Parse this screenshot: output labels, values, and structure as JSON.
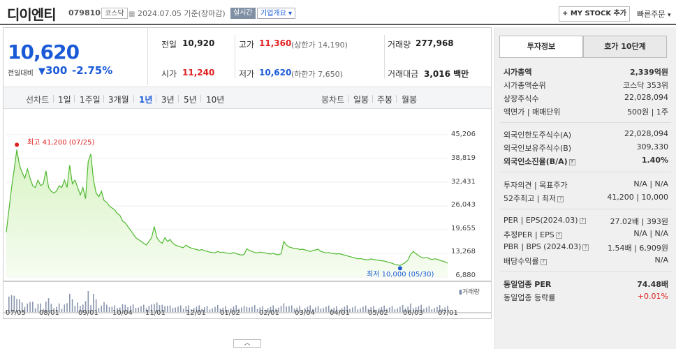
{
  "header": {
    "company": "디이엔티",
    "code": "079810",
    "market": "코스닥",
    "date": "2024.07.05 기준(장마감)",
    "live": "실시간",
    "company_info": "기업개요",
    "my_stock": "+ MY STOCK 추가",
    "fast_order": "빠른주문"
  },
  "price": {
    "current": "10,620",
    "change_label": "전일대비",
    "change": "300",
    "change_pct": "-2.75%"
  },
  "stats": {
    "prev_label": "전일",
    "prev": "10,920",
    "high_label": "고가",
    "high": "11,360",
    "upper_limit": "(상한가 14,190)",
    "vol_label": "거래량",
    "volume": "277,968",
    "open_label": "시가",
    "open": "11,240",
    "low_label": "저가",
    "low": "10,620",
    "lower_limit": "(하한가 7,650)",
    "amount_label": "거래대금",
    "amount": "3,016 백만"
  },
  "periods": {
    "line_label": "선차트",
    "items": [
      "1일",
      "1주일",
      "3개월",
      "1년",
      "3년",
      "5년",
      "10년"
    ],
    "active": "1년",
    "candle_label": "봉차트",
    "candle_items": [
      "일봉",
      "주봉",
      "월봉"
    ]
  },
  "chart_data": {
    "type": "area",
    "y_ticks": [
      "45,206",
      "38,819",
      "32,431",
      "26,043",
      "19,655",
      "13,268",
      "6,880"
    ],
    "ylim": [
      6880,
      45206
    ],
    "x_ticks": [
      "07/05",
      "08/01",
      "09/01",
      "10/04",
      "11/01",
      "12/01",
      "01/02",
      "02/01",
      "03/04",
      "04/01",
      "05/02",
      "06/03",
      "07/01"
    ],
    "high_annotation": "최고 41,200 (07/25)",
    "low_annotation": "최저 10,000 (05/30)",
    "volume_label": "거래량",
    "series": [
      {
        "values": [
          19000,
          25000,
          31000,
          36000,
          41200,
          37000,
          35000,
          33500,
          36000,
          33500,
          31500,
          31000,
          33000,
          31500,
          32000,
          35500,
          31000,
          30000,
          29500,
          30000,
          31500,
          31000,
          33000,
          31000,
          37000,
          32000,
          33000,
          31000,
          29000,
          31000,
          28000,
          38000,
          40000,
          33000,
          29500,
          28500,
          30000,
          27500,
          27000,
          26000,
          25500,
          25000,
          24000,
          23500,
          22000,
          21500,
          20500,
          19500,
          18500,
          17500,
          17000,
          16500,
          16000,
          15500,
          16500,
          17500,
          20500,
          17500,
          16500,
          16000,
          17500,
          16500,
          17000,
          16000,
          15500,
          15200,
          15000,
          14800,
          15500,
          15000,
          14700,
          14500,
          14300,
          14100,
          14300,
          14000,
          13800,
          13600,
          13500,
          13400,
          13800,
          13500,
          13600,
          13400,
          13300,
          13200,
          13500,
          13200,
          13000,
          12800,
          13000,
          14500,
          14000,
          13800,
          13500,
          13400,
          13600,
          13500,
          13400,
          13200,
          13100,
          13300,
          13000,
          12900,
          13200,
          16500,
          15500,
          15000,
          14800,
          14500,
          14600,
          14300,
          14400,
          14200,
          14000,
          13800,
          14000,
          14200,
          14400,
          13800,
          13600,
          13400,
          13500,
          13300,
          13200,
          13100,
          13200,
          13000,
          12800,
          12600,
          12400,
          12200,
          12000,
          11800,
          11900,
          11700,
          11600,
          11500,
          11800,
          11600,
          11500,
          11400,
          11300,
          11200,
          11000,
          10800,
          10600,
          10300,
          10200,
          10000,
          10400,
          10800,
          11500,
          13000,
          13800,
          13200,
          12700,
          12200,
          12000,
          12200,
          11900,
          11600,
          11800,
          11700,
          11400,
          11200,
          11000,
          10620
        ]
      }
    ]
  },
  "side": {
    "tab_active": "투자정보",
    "tab_inactive": "호가 10단계",
    "rows1": [
      {
        "l": "시가총액",
        "r": "2,339억원",
        "bold": true
      },
      {
        "l": "시가총액순위",
        "r": "코스닥 353위"
      },
      {
        "l": "상장주식수",
        "r": "22,028,094"
      },
      {
        "l": "액면가 | 매매단위",
        "r": "500원 | 1주"
      }
    ],
    "rows2": [
      {
        "l": "외국인한도주식수(A)",
        "r": "22,028,094"
      },
      {
        "l": "외국인보유주식수(B)",
        "r": "309,330"
      },
      {
        "l": "외국인소진율(B/A)",
        "r": "1.40%",
        "bold": true
      }
    ],
    "rows3": [
      {
        "l": "투자의견 | 목표주가",
        "r": "N/A | N/A"
      },
      {
        "l": "52주최고 | 최저",
        "r": "41,200 | 10,000"
      }
    ],
    "rows4": [
      {
        "l": "PER | EPS(2024.03)",
        "r": "27.02배 | 393원"
      },
      {
        "l": "추정PER | EPS",
        "r": "N/A | N/A"
      },
      {
        "l": "PBR | BPS (2024.03)",
        "r": "1.54배 | 6,909원"
      },
      {
        "l": "배당수익률",
        "r": "N/A"
      }
    ],
    "rows5": [
      {
        "l": "동일업종 PER",
        "r": "74.48배",
        "bold": true
      },
      {
        "l": "동일업종 등락률",
        "r": "+0.01%",
        "red": true
      }
    ]
  },
  "colors": {
    "up": "#e02020",
    "down": "#1a5ad7",
    "chart_line": "#4fb830",
    "chart_fill": "#d8f3c4"
  }
}
